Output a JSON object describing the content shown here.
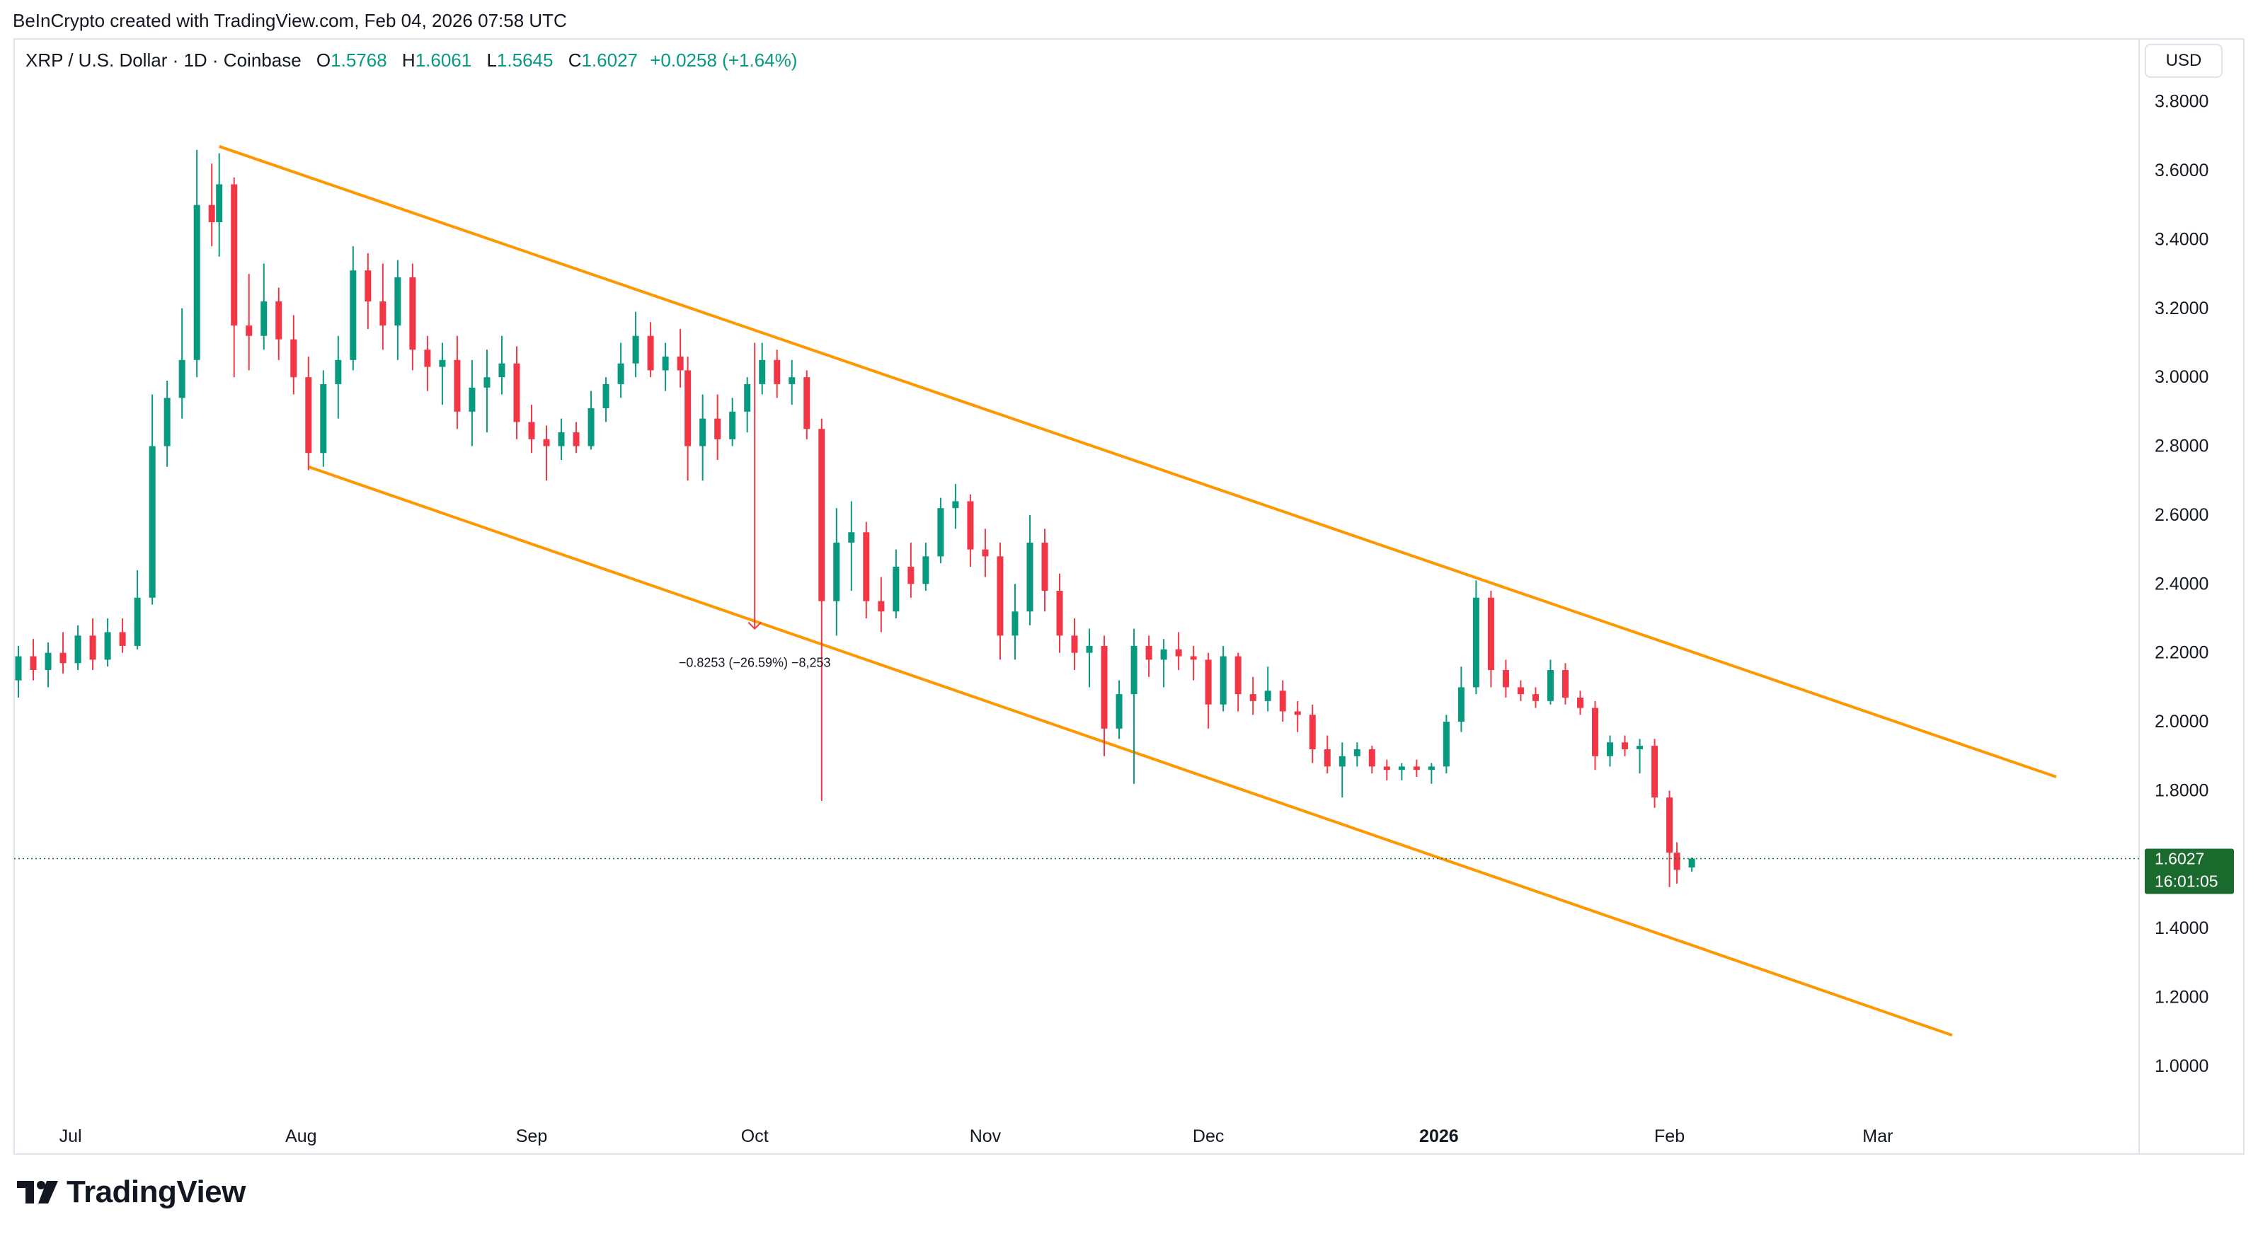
{
  "header": {
    "credit": "BeInCrypto created with TradingView.com, Feb 04, 2026 07:58 UTC"
  },
  "legend": {
    "symbol": "XRP / U.S. Dollar · 1D · Coinbase",
    "open_label": "O",
    "open": "1.5768",
    "high_label": "H",
    "high": "1.6061",
    "low_label": "L",
    "low": "1.5645",
    "close_label": "C",
    "close": "1.6027",
    "change": "+0.0258 (+1.64%)"
  },
  "currency_button": "USD",
  "price_tag": {
    "price": "1.6027",
    "countdown": "16:01:05"
  },
  "measure_label": "−0.8253 (−26.59%) −8,253",
  "brand": {
    "name": "TradingView"
  },
  "colors": {
    "up": "#089981",
    "down": "#f23645",
    "channel": "#ff9800",
    "price_tag": "#1b6b2f",
    "measure": "#f23645"
  },
  "chart_data": {
    "type": "candlestick",
    "symbol": "XRP/USD",
    "interval": "1D",
    "ylim": [
      0.85,
      3.98
    ],
    "y_ticks": [
      "1.0000",
      "1.2000",
      "1.4000",
      "1.6000",
      "1.8000",
      "2.0000",
      "2.2000",
      "2.4000",
      "2.6000",
      "2.8000",
      "3.0000",
      "3.2000",
      "3.4000",
      "3.6000",
      "3.8000"
    ],
    "x_ticks": [
      {
        "label": "Jul",
        "date": "2025-07-01",
        "bold": false
      },
      {
        "label": "Aug",
        "date": "2025-08-01",
        "bold": false
      },
      {
        "label": "Sep",
        "date": "2025-09-01",
        "bold": false
      },
      {
        "label": "Oct",
        "date": "2025-10-01",
        "bold": false
      },
      {
        "label": "Nov",
        "date": "2025-11-01",
        "bold": false
      },
      {
        "label": "Dec",
        "date": "2025-12-01",
        "bold": false
      },
      {
        "label": "2026",
        "date": "2026-01-01",
        "bold": true
      },
      {
        "label": "Feb",
        "date": "2026-02-01",
        "bold": false
      },
      {
        "label": "Mar",
        "date": "2026-03-01",
        "bold": false
      }
    ],
    "x_range": [
      "2025-06-24",
      "2026-03-31"
    ],
    "candles": [
      {
        "date": "2025-06-24",
        "o": 2.12,
        "h": 2.22,
        "l": 2.07,
        "c": 2.19
      },
      {
        "date": "2025-06-26",
        "o": 2.19,
        "h": 2.24,
        "l": 2.12,
        "c": 2.15
      },
      {
        "date": "2025-06-28",
        "o": 2.15,
        "h": 2.23,
        "l": 2.1,
        "c": 2.2
      },
      {
        "date": "2025-06-30",
        "o": 2.2,
        "h": 2.26,
        "l": 2.14,
        "c": 2.17
      },
      {
        "date": "2025-07-02",
        "o": 2.17,
        "h": 2.28,
        "l": 2.15,
        "c": 2.25
      },
      {
        "date": "2025-07-04",
        "o": 2.25,
        "h": 2.3,
        "l": 2.15,
        "c": 2.18
      },
      {
        "date": "2025-07-06",
        "o": 2.18,
        "h": 2.3,
        "l": 2.16,
        "c": 2.26
      },
      {
        "date": "2025-07-08",
        "o": 2.26,
        "h": 2.3,
        "l": 2.2,
        "c": 2.22
      },
      {
        "date": "2025-07-10",
        "o": 2.22,
        "h": 2.44,
        "l": 2.21,
        "c": 2.36
      },
      {
        "date": "2025-07-12",
        "o": 2.36,
        "h": 2.95,
        "l": 2.34,
        "c": 2.8
      },
      {
        "date": "2025-07-14",
        "o": 2.8,
        "h": 2.99,
        "l": 2.74,
        "c": 2.94
      },
      {
        "date": "2025-07-16",
        "o": 2.94,
        "h": 3.2,
        "l": 2.88,
        "c": 3.05
      },
      {
        "date": "2025-07-18",
        "o": 3.05,
        "h": 3.66,
        "l": 3.0,
        "c": 3.5
      },
      {
        "date": "2025-07-20",
        "o": 3.5,
        "h": 3.62,
        "l": 3.38,
        "c": 3.45
      },
      {
        "date": "2025-07-21",
        "o": 3.45,
        "h": 3.65,
        "l": 3.35,
        "c": 3.56
      },
      {
        "date": "2025-07-23",
        "o": 3.56,
        "h": 3.58,
        "l": 3.0,
        "c": 3.15
      },
      {
        "date": "2025-07-25",
        "o": 3.15,
        "h": 3.3,
        "l": 3.02,
        "c": 3.12
      },
      {
        "date": "2025-07-27",
        "o": 3.12,
        "h": 3.33,
        "l": 3.08,
        "c": 3.22
      },
      {
        "date": "2025-07-29",
        "o": 3.22,
        "h": 3.26,
        "l": 3.05,
        "c": 3.11
      },
      {
        "date": "2025-07-31",
        "o": 3.11,
        "h": 3.18,
        "l": 2.95,
        "c": 3.0
      },
      {
        "date": "2025-08-02",
        "o": 3.0,
        "h": 3.06,
        "l": 2.73,
        "c": 2.78
      },
      {
        "date": "2025-08-04",
        "o": 2.78,
        "h": 3.02,
        "l": 2.74,
        "c": 2.98
      },
      {
        "date": "2025-08-06",
        "o": 2.98,
        "h": 3.12,
        "l": 2.88,
        "c": 3.05
      },
      {
        "date": "2025-08-08",
        "o": 3.05,
        "h": 3.38,
        "l": 3.02,
        "c": 3.31
      },
      {
        "date": "2025-08-10",
        "o": 3.31,
        "h": 3.36,
        "l": 3.14,
        "c": 3.22
      },
      {
        "date": "2025-08-12",
        "o": 3.22,
        "h": 3.33,
        "l": 3.08,
        "c": 3.15
      },
      {
        "date": "2025-08-14",
        "o": 3.15,
        "h": 3.34,
        "l": 3.05,
        "c": 3.29
      },
      {
        "date": "2025-08-16",
        "o": 3.29,
        "h": 3.33,
        "l": 3.02,
        "c": 3.08
      },
      {
        "date": "2025-08-18",
        "o": 3.08,
        "h": 3.12,
        "l": 2.96,
        "c": 3.03
      },
      {
        "date": "2025-08-20",
        "o": 3.03,
        "h": 3.1,
        "l": 2.92,
        "c": 3.05
      },
      {
        "date": "2025-08-22",
        "o": 3.05,
        "h": 3.12,
        "l": 2.85,
        "c": 2.9
      },
      {
        "date": "2025-08-24",
        "o": 2.9,
        "h": 3.05,
        "l": 2.8,
        "c": 2.97
      },
      {
        "date": "2025-08-26",
        "o": 2.97,
        "h": 3.08,
        "l": 2.84,
        "c": 3.0
      },
      {
        "date": "2025-08-28",
        "o": 3.0,
        "h": 3.12,
        "l": 2.95,
        "c": 3.04
      },
      {
        "date": "2025-08-30",
        "o": 3.04,
        "h": 3.09,
        "l": 2.82,
        "c": 2.87
      },
      {
        "date": "2025-09-01",
        "o": 2.87,
        "h": 2.92,
        "l": 2.78,
        "c": 2.82
      },
      {
        "date": "2025-09-03",
        "o": 2.82,
        "h": 2.86,
        "l": 2.7,
        "c": 2.8
      },
      {
        "date": "2025-09-05",
        "o": 2.8,
        "h": 2.88,
        "l": 2.76,
        "c": 2.84
      },
      {
        "date": "2025-09-07",
        "o": 2.84,
        "h": 2.87,
        "l": 2.78,
        "c": 2.8
      },
      {
        "date": "2025-09-09",
        "o": 2.8,
        "h": 2.96,
        "l": 2.79,
        "c": 2.91
      },
      {
        "date": "2025-09-11",
        "o": 2.91,
        "h": 3.0,
        "l": 2.87,
        "c": 2.98
      },
      {
        "date": "2025-09-13",
        "o": 2.98,
        "h": 3.1,
        "l": 2.94,
        "c": 3.04
      },
      {
        "date": "2025-09-15",
        "o": 3.04,
        "h": 3.19,
        "l": 3.0,
        "c": 3.12
      },
      {
        "date": "2025-09-17",
        "o": 3.12,
        "h": 3.16,
        "l": 3.0,
        "c": 3.02
      },
      {
        "date": "2025-09-19",
        "o": 3.02,
        "h": 3.1,
        "l": 2.96,
        "c": 3.06
      },
      {
        "date": "2025-09-21",
        "o": 3.06,
        "h": 3.14,
        "l": 2.97,
        "c": 3.02
      },
      {
        "date": "2025-09-22",
        "o": 3.02,
        "h": 3.06,
        "l": 2.7,
        "c": 2.8
      },
      {
        "date": "2025-09-24",
        "o": 2.8,
        "h": 2.95,
        "l": 2.7,
        "c": 2.88
      },
      {
        "date": "2025-09-26",
        "o": 2.88,
        "h": 2.95,
        "l": 2.76,
        "c": 2.82
      },
      {
        "date": "2025-09-28",
        "o": 2.82,
        "h": 2.94,
        "l": 2.8,
        "c": 2.9
      },
      {
        "date": "2025-09-30",
        "o": 2.9,
        "h": 3.0,
        "l": 2.84,
        "c": 2.98
      },
      {
        "date": "2025-10-02",
        "o": 2.98,
        "h": 3.1,
        "l": 2.95,
        "c": 3.05
      },
      {
        "date": "2025-10-04",
        "o": 3.05,
        "h": 3.08,
        "l": 2.94,
        "c": 2.98
      },
      {
        "date": "2025-10-06",
        "o": 2.98,
        "h": 3.05,
        "l": 2.92,
        "c": 3.0
      },
      {
        "date": "2025-10-08",
        "o": 3.0,
        "h": 3.02,
        "l": 2.82,
        "c": 2.85
      },
      {
        "date": "2025-10-10",
        "o": 2.85,
        "h": 2.88,
        "l": 1.77,
        "c": 2.35
      },
      {
        "date": "2025-10-12",
        "o": 2.35,
        "h": 2.62,
        "l": 2.25,
        "c": 2.52
      },
      {
        "date": "2025-10-14",
        "o": 2.52,
        "h": 2.64,
        "l": 2.38,
        "c": 2.55
      },
      {
        "date": "2025-10-16",
        "o": 2.55,
        "h": 2.58,
        "l": 2.3,
        "c": 2.35
      },
      {
        "date": "2025-10-18",
        "o": 2.35,
        "h": 2.42,
        "l": 2.26,
        "c": 2.32
      },
      {
        "date": "2025-10-20",
        "o": 2.32,
        "h": 2.5,
        "l": 2.3,
        "c": 2.45
      },
      {
        "date": "2025-10-22",
        "o": 2.45,
        "h": 2.52,
        "l": 2.36,
        "c": 2.4
      },
      {
        "date": "2025-10-24",
        "o": 2.4,
        "h": 2.52,
        "l": 2.38,
        "c": 2.48
      },
      {
        "date": "2025-10-26",
        "o": 2.48,
        "h": 2.65,
        "l": 2.46,
        "c": 2.62
      },
      {
        "date": "2025-10-28",
        "o": 2.62,
        "h": 2.69,
        "l": 2.56,
        "c": 2.64
      },
      {
        "date": "2025-10-30",
        "o": 2.64,
        "h": 2.66,
        "l": 2.45,
        "c": 2.5
      },
      {
        "date": "2025-11-01",
        "o": 2.5,
        "h": 2.56,
        "l": 2.42,
        "c": 2.48
      },
      {
        "date": "2025-11-03",
        "o": 2.48,
        "h": 2.52,
        "l": 2.18,
        "c": 2.25
      },
      {
        "date": "2025-11-05",
        "o": 2.25,
        "h": 2.4,
        "l": 2.18,
        "c": 2.32
      },
      {
        "date": "2025-11-07",
        "o": 2.32,
        "h": 2.6,
        "l": 2.28,
        "c": 2.52
      },
      {
        "date": "2025-11-09",
        "o": 2.52,
        "h": 2.56,
        "l": 2.32,
        "c": 2.38
      },
      {
        "date": "2025-11-11",
        "o": 2.38,
        "h": 2.43,
        "l": 2.2,
        "c": 2.25
      },
      {
        "date": "2025-11-13",
        "o": 2.25,
        "h": 2.3,
        "l": 2.15,
        "c": 2.2
      },
      {
        "date": "2025-11-15",
        "o": 2.2,
        "h": 2.27,
        "l": 2.1,
        "c": 2.22
      },
      {
        "date": "2025-11-17",
        "o": 2.22,
        "h": 2.25,
        "l": 1.9,
        "c": 1.98
      },
      {
        "date": "2025-11-19",
        "o": 1.98,
        "h": 2.12,
        "l": 1.95,
        "c": 2.08
      },
      {
        "date": "2025-11-21",
        "o": 2.08,
        "h": 2.27,
        "l": 1.82,
        "c": 2.22
      },
      {
        "date": "2025-11-23",
        "o": 2.22,
        "h": 2.25,
        "l": 2.13,
        "c": 2.18
      },
      {
        "date": "2025-11-25",
        "o": 2.18,
        "h": 2.24,
        "l": 2.1,
        "c": 2.21
      },
      {
        "date": "2025-11-27",
        "o": 2.21,
        "h": 2.26,
        "l": 2.15,
        "c": 2.19
      },
      {
        "date": "2025-11-29",
        "o": 2.19,
        "h": 2.22,
        "l": 2.12,
        "c": 2.18
      },
      {
        "date": "2025-12-01",
        "o": 2.18,
        "h": 2.2,
        "l": 1.98,
        "c": 2.05
      },
      {
        "date": "2025-12-03",
        "o": 2.05,
        "h": 2.22,
        "l": 2.03,
        "c": 2.19
      },
      {
        "date": "2025-12-05",
        "o": 2.19,
        "h": 2.2,
        "l": 2.03,
        "c": 2.08
      },
      {
        "date": "2025-12-07",
        "o": 2.08,
        "h": 2.13,
        "l": 2.02,
        "c": 2.06
      },
      {
        "date": "2025-12-09",
        "o": 2.06,
        "h": 2.16,
        "l": 2.03,
        "c": 2.09
      },
      {
        "date": "2025-12-11",
        "o": 2.09,
        "h": 2.12,
        "l": 2.0,
        "c": 2.03
      },
      {
        "date": "2025-12-13",
        "o": 2.03,
        "h": 2.06,
        "l": 1.97,
        "c": 2.02
      },
      {
        "date": "2025-12-15",
        "o": 2.02,
        "h": 2.05,
        "l": 1.88,
        "c": 1.92
      },
      {
        "date": "2025-12-17",
        "o": 1.92,
        "h": 1.96,
        "l": 1.85,
        "c": 1.87
      },
      {
        "date": "2025-12-19",
        "o": 1.87,
        "h": 1.94,
        "l": 1.78,
        "c": 1.9
      },
      {
        "date": "2025-12-21",
        "o": 1.9,
        "h": 1.94,
        "l": 1.87,
        "c": 1.92
      },
      {
        "date": "2025-12-23",
        "o": 1.92,
        "h": 1.93,
        "l": 1.85,
        "c": 1.87
      },
      {
        "date": "2025-12-25",
        "o": 1.87,
        "h": 1.89,
        "l": 1.83,
        "c": 1.86
      },
      {
        "date": "2025-12-27",
        "o": 1.86,
        "h": 1.88,
        "l": 1.83,
        "c": 1.87
      },
      {
        "date": "2025-12-29",
        "o": 1.87,
        "h": 1.89,
        "l": 1.84,
        "c": 1.86
      },
      {
        "date": "2025-12-31",
        "o": 1.86,
        "h": 1.88,
        "l": 1.82,
        "c": 1.87
      },
      {
        "date": "2026-01-02",
        "o": 1.87,
        "h": 2.02,
        "l": 1.85,
        "c": 2.0
      },
      {
        "date": "2026-01-04",
        "o": 2.0,
        "h": 2.16,
        "l": 1.97,
        "c": 2.1
      },
      {
        "date": "2026-01-06",
        "o": 2.1,
        "h": 2.41,
        "l": 2.08,
        "c": 2.36
      },
      {
        "date": "2026-01-08",
        "o": 2.36,
        "h": 2.38,
        "l": 2.1,
        "c": 2.15
      },
      {
        "date": "2026-01-10",
        "o": 2.15,
        "h": 2.18,
        "l": 2.07,
        "c": 2.1
      },
      {
        "date": "2026-01-12",
        "o": 2.1,
        "h": 2.12,
        "l": 2.06,
        "c": 2.08
      },
      {
        "date": "2026-01-14",
        "o": 2.08,
        "h": 2.1,
        "l": 2.04,
        "c": 2.06
      },
      {
        "date": "2026-01-16",
        "o": 2.06,
        "h": 2.18,
        "l": 2.05,
        "c": 2.15
      },
      {
        "date": "2026-01-18",
        "o": 2.15,
        "h": 2.17,
        "l": 2.05,
        "c": 2.07
      },
      {
        "date": "2026-01-20",
        "o": 2.07,
        "h": 2.09,
        "l": 2.02,
        "c": 2.04
      },
      {
        "date": "2026-01-22",
        "o": 2.04,
        "h": 2.06,
        "l": 1.86,
        "c": 1.9
      },
      {
        "date": "2026-01-24",
        "o": 1.9,
        "h": 1.96,
        "l": 1.87,
        "c": 1.94
      },
      {
        "date": "2026-01-26",
        "o": 1.94,
        "h": 1.96,
        "l": 1.9,
        "c": 1.92
      },
      {
        "date": "2026-01-28",
        "o": 1.92,
        "h": 1.95,
        "l": 1.85,
        "c": 1.93
      },
      {
        "date": "2026-01-30",
        "o": 1.93,
        "h": 1.95,
        "l": 1.75,
        "c": 1.78
      },
      {
        "date": "2026-02-01",
        "o": 1.78,
        "h": 1.8,
        "l": 1.52,
        "c": 1.62
      },
      {
        "date": "2026-02-02",
        "o": 1.62,
        "h": 1.65,
        "l": 1.53,
        "c": 1.57
      },
      {
        "date": "2026-02-04",
        "o": 1.5768,
        "h": 1.6061,
        "l": 1.5645,
        "c": 1.6027
      }
    ],
    "trendlines": [
      {
        "name": "upper-channel",
        "from": {
          "date": "2025-07-21",
          "price": 3.67
        },
        "to": {
          "date": "2026-03-25",
          "price": 1.84
        }
      },
      {
        "name": "lower-channel",
        "from": {
          "date": "2025-08-02",
          "price": 2.74
        },
        "to": {
          "date": "2026-03-11",
          "price": 1.09
        }
      }
    ],
    "measure": {
      "date": "2025-10-01",
      "from": 3.1,
      "to": 2.27
    },
    "current_price": 1.6027
  }
}
